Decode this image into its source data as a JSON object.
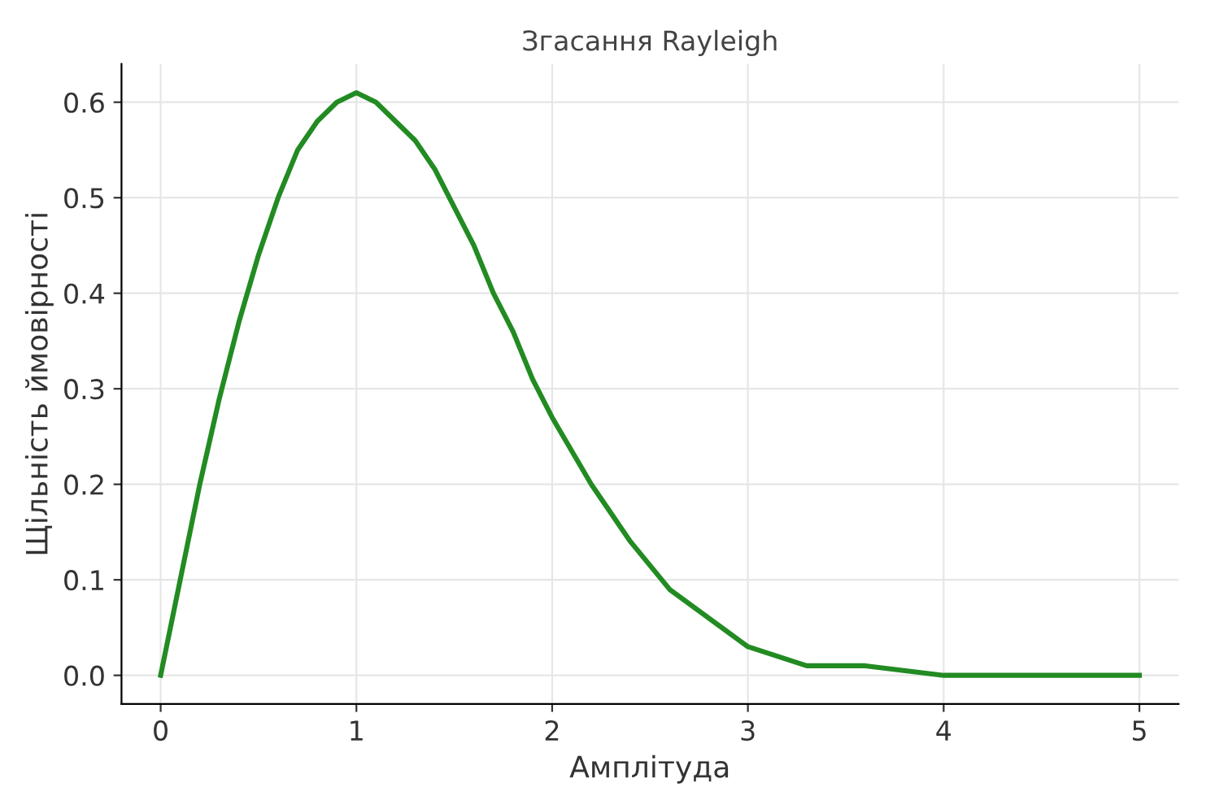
{
  "chart_data": {
    "type": "line",
    "title": "Згасання Rayleigh",
    "xlabel": "Амплітуда",
    "ylabel": "Щільність ймовірності",
    "x": [
      0,
      0.1,
      0.2,
      0.3,
      0.4,
      0.5,
      0.6,
      0.7,
      0.8,
      0.9,
      1.0,
      1.1,
      1.2,
      1.3,
      1.4,
      1.5,
      1.6,
      1.7,
      1.8,
      1.9,
      2.0,
      2.2,
      2.4,
      2.6,
      2.8,
      3.0,
      3.3,
      3.6,
      4.0,
      4.5,
      5.0
    ],
    "series": [
      {
        "color": "#228b22",
        "values": [
          0,
          0.1,
          0.2,
          0.29,
          0.37,
          0.44,
          0.5,
          0.55,
          0.58,
          0.6,
          0.61,
          0.6,
          0.58,
          0.56,
          0.53,
          0.49,
          0.45,
          0.4,
          0.36,
          0.31,
          0.27,
          0.2,
          0.14,
          0.09,
          0.06,
          0.03,
          0.01,
          0.01,
          0,
          0,
          0
        ]
      }
    ],
    "xlim": [
      -0.2,
      5.2
    ],
    "ylim": [
      -0.03,
      0.64
    ],
    "xticks": [
      0,
      1,
      2,
      3,
      4,
      5
    ],
    "yticks": [
      {
        "value": 0,
        "label": "0.0"
      },
      0.1,
      0.2,
      0.3,
      0.4,
      0.5,
      0.6
    ],
    "grid": true,
    "marker": "none",
    "line_style": "solid"
  }
}
